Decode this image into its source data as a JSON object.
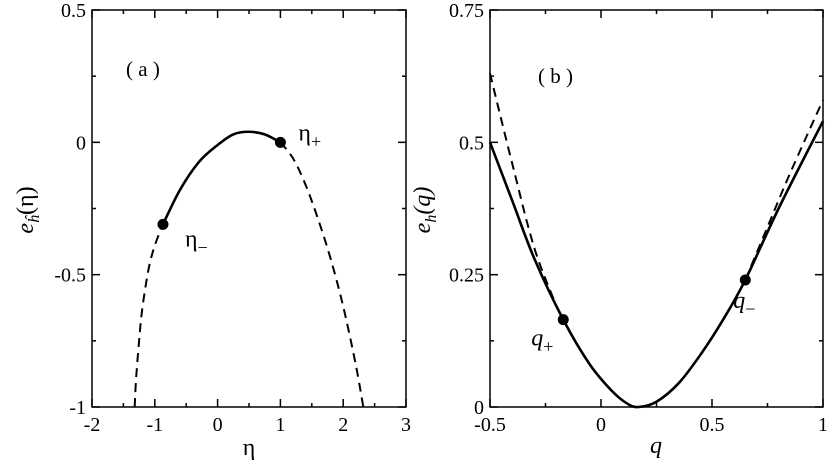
{
  "chart_data": [
    {
      "type": "line",
      "panel_label": "( a )",
      "xlabel": "η",
      "ylabel": "e",
      "ylabel_sub": "ĥ",
      "ylabel_arg": "(η)",
      "xlim": [
        -2,
        3
      ],
      "ylim": [
        -1,
        0.5
      ],
      "xticks": [
        -2,
        -1,
        0,
        1,
        2,
        3
      ],
      "yticks": [
        -1,
        -0.5,
        0,
        0.5
      ],
      "xtick_labels": [
        "-2",
        "-1",
        "0",
        "1",
        "2",
        "3"
      ],
      "ytick_labels": [
        "-1",
        "-0.5",
        "0",
        "0.5"
      ],
      "series": [
        {
          "style": "solid",
          "x": [
            -0.87,
            -0.6,
            -0.3,
            0.0,
            0.25,
            0.5,
            0.75,
            1.0
          ],
          "y": [
            -0.31,
            -0.18,
            -0.075,
            -0.01,
            0.03,
            0.04,
            0.03,
            0.0
          ]
        },
        {
          "style": "dashed",
          "x": [
            -1.32,
            -1.3,
            -1.25,
            -1.2,
            -1.1,
            -1.0,
            -0.87
          ],
          "y": [
            -1.0,
            -0.9,
            -0.75,
            -0.63,
            -0.48,
            -0.39,
            -0.31
          ]
        },
        {
          "style": "dashed",
          "x": [
            1.0,
            1.2,
            1.4,
            1.6,
            1.8,
            2.0,
            2.2,
            2.32
          ],
          "y": [
            0.0,
            -0.06,
            -0.16,
            -0.29,
            -0.44,
            -0.62,
            -0.84,
            -1.0
          ]
        }
      ],
      "points": [
        {
          "x": -0.87,
          "y": -0.31,
          "label": "η",
          "sub": "−"
        },
        {
          "x": 1.0,
          "y": 0.0,
          "label": "η",
          "sub": "+"
        }
      ]
    },
    {
      "type": "line",
      "panel_label": "( b )",
      "xlabel": "q",
      "ylabel": "e",
      "ylabel_sub": "h",
      "ylabel_arg": "(q)",
      "xlim": [
        -0.5,
        1
      ],
      "ylim": [
        0,
        0.75
      ],
      "xticks": [
        -0.5,
        0,
        0.5,
        1
      ],
      "yticks": [
        0,
        0.25,
        0.5,
        0.75
      ],
      "xtick_labels": [
        "-0.5",
        "0",
        "0.5",
        "1"
      ],
      "ytick_labels": [
        "0",
        "0.25",
        "0.5",
        "0.75"
      ],
      "series": [
        {
          "style": "solid",
          "x": [
            -0.5,
            -0.4,
            -0.3,
            -0.17,
            -0.05,
            0.05,
            0.12,
            0.17,
            0.25,
            0.35,
            0.45,
            0.55,
            0.65,
            0.8,
            1.0
          ],
          "y": [
            0.5,
            0.39,
            0.28,
            0.165,
            0.08,
            0.03,
            0.006,
            0.0,
            0.01,
            0.045,
            0.1,
            0.165,
            0.24,
            0.375,
            0.54
          ]
        },
        {
          "style": "dashed",
          "x": [
            -0.5,
            -0.4,
            -0.3,
            -0.2
          ],
          "y": [
            0.63,
            0.46,
            0.3,
            0.19
          ]
        },
        {
          "style": "dashed",
          "x": [
            0.65,
            0.75,
            0.85,
            1.0
          ],
          "y": [
            0.24,
            0.34,
            0.44,
            0.58
          ]
        }
      ],
      "points": [
        {
          "x": -0.17,
          "y": 0.165,
          "label": "q",
          "sub": "+"
        },
        {
          "x": 0.65,
          "y": 0.24,
          "label": "q",
          "sub": "−"
        }
      ]
    }
  ]
}
